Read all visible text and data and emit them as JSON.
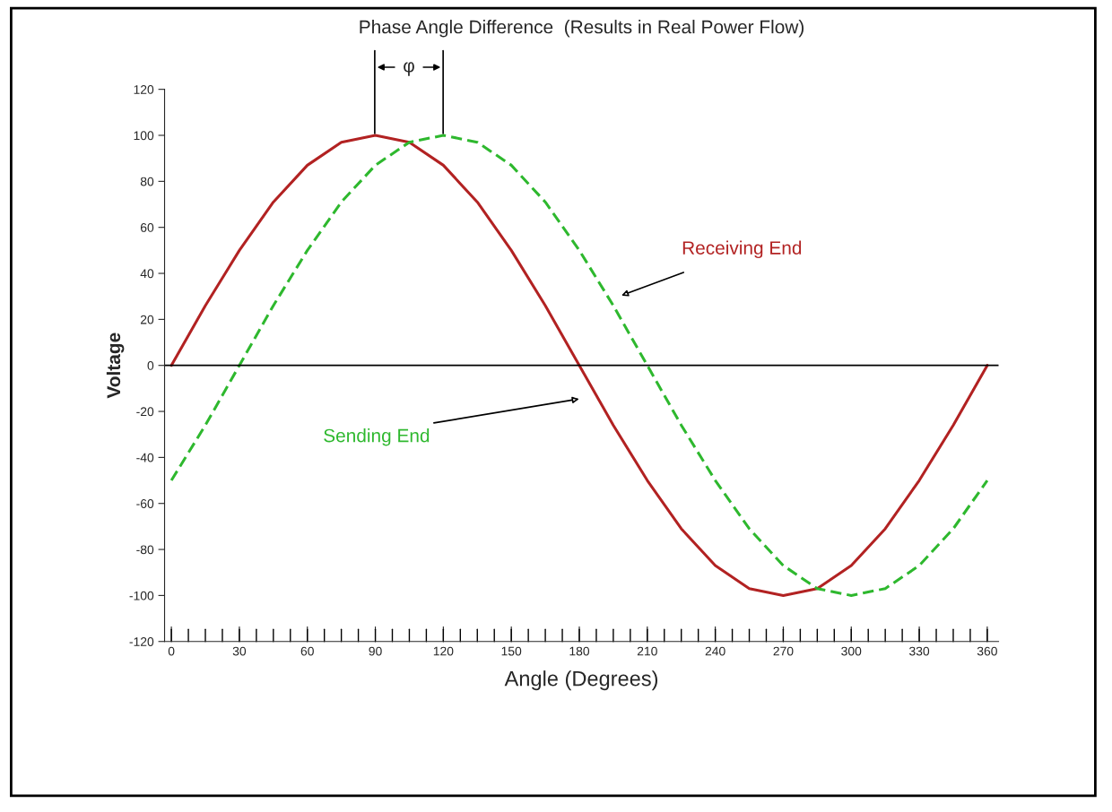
{
  "chart_data": {
    "type": "line",
    "title": "Phase Angle Difference  (Results in Real Power Flow)",
    "xlabel": "Angle (Degrees)",
    "ylabel": "Voltage",
    "x": [
      0,
      15,
      30,
      45,
      60,
      75,
      90,
      105,
      120,
      135,
      150,
      165,
      180,
      195,
      210,
      225,
      240,
      255,
      270,
      285,
      300,
      315,
      330,
      345,
      360
    ],
    "series": [
      {
        "color": "#b22222",
        "line_style": "solid",
        "values": [
          0,
          26,
          50,
          71,
          87,
          97,
          100,
          97,
          87,
          71,
          50,
          26,
          0,
          -26,
          -50,
          -71,
          -87,
          -97,
          -100,
          -97,
          -87,
          -71,
          -50,
          -26,
          0
        ]
      },
      {
        "color": "#2eb82e",
        "line_style": "dashed",
        "values": [
          -50,
          -26,
          0,
          26,
          50,
          71,
          87,
          97,
          100,
          97,
          87,
          71,
          50,
          26,
          0,
          -26,
          -50,
          -71,
          -87,
          -97,
          -100,
          -97,
          -87,
          -71,
          -50
        ]
      }
    ],
    "annotations": [
      "Receiving End",
      "Sending End",
      "φ"
    ],
    "ref_lines": [
      {
        "axis": "y",
        "value": 0,
        "color": "#000000"
      }
    ],
    "xlim": [
      -3,
      365
    ],
    "ylim": [
      -120,
      120
    ],
    "xticks": [
      0,
      30,
      60,
      90,
      120,
      150,
      180,
      210,
      240,
      270,
      300,
      330,
      360
    ],
    "yticks": [
      -120,
      -100,
      -80,
      -60,
      -40,
      -20,
      0,
      20,
      40,
      60,
      80,
      100,
      120
    ],
    "grid": false,
    "legend": false
  }
}
